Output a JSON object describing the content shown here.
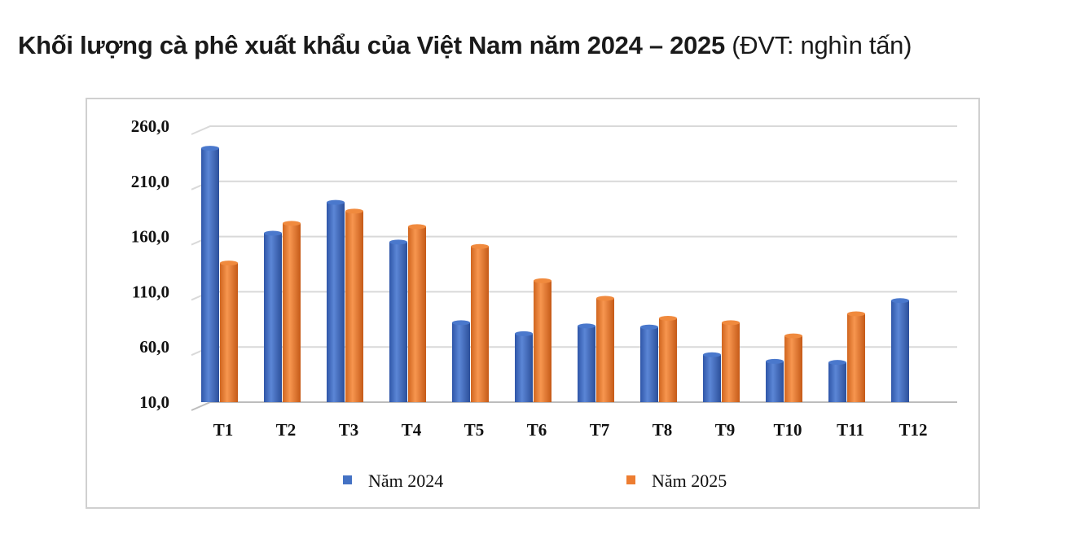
{
  "title": {
    "bold": "Khối lượng cà phê xuất khẩu của Việt Nam năm 2024 – 2025",
    "unit": " (ĐVT: nghìn tấn)"
  },
  "chart_data": {
    "type": "bar",
    "title": "Khối lượng cà phê xuất khẩu của Việt Nam năm 2024 – 2025 (ĐVT: nghìn tấn)",
    "categories": [
      "T1",
      "T2",
      "T3",
      "T4",
      "T5",
      "T6",
      "T7",
      "T8",
      "T9",
      "T10",
      "T11",
      "T12"
    ],
    "series": [
      {
        "name": "Năm 2024",
        "color": "#4472C4",
        "values": [
          240,
          163,
          191,
          155,
          82,
          72,
          79,
          78,
          53,
          47,
          46,
          102
        ]
      },
      {
        "name": "Năm 2025",
        "color": "#ED7D31",
        "values": [
          136,
          172,
          183,
          169,
          151,
          120,
          104,
          86,
          82,
          70,
          90,
          null
        ]
      }
    ],
    "yticks": [
      "10,0",
      "60,0",
      "110,0",
      "160,0",
      "210,0",
      "260,0"
    ],
    "ylim": [
      10,
      260
    ],
    "grid": true,
    "legend": "bottom",
    "xlabel": "",
    "ylabel": ""
  }
}
